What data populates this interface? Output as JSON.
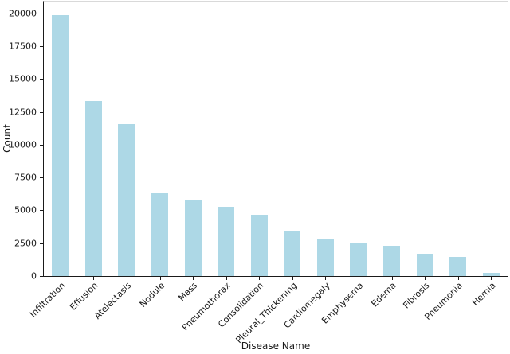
{
  "chart_data": {
    "type": "bar",
    "title": "",
    "xlabel": "Disease Name",
    "ylabel": "Count",
    "categories": [
      "Infiltration",
      "Effusion",
      "Atelectasis",
      "Nodule",
      "Mass",
      "Pneumothorax",
      "Consolidation",
      "Pleural_Thickening",
      "Cardiomegaly",
      "Emphysema",
      "Edema",
      "Fibrosis",
      "Pneumonia",
      "Hernia"
    ],
    "values": [
      19894,
      13317,
      11559,
      6331,
      5782,
      5302,
      4667,
      3385,
      2776,
      2516,
      2303,
      1686,
      1431,
      227
    ],
    "yticks": [
      0,
      2500,
      5000,
      7500,
      10000,
      12500,
      15000,
      17500,
      20000
    ],
    "ylim": [
      0,
      20903
    ],
    "x_tick_rotation_deg": 45,
    "bar_width_fraction": 0.5,
    "grid": false,
    "legend": "none",
    "colors": {
      "bar": "#ADD8E6",
      "axis": "#1a1a1a",
      "text": "#1a1a1a",
      "top_spine": "#d9d9d9",
      "background": "#ffffff"
    }
  }
}
